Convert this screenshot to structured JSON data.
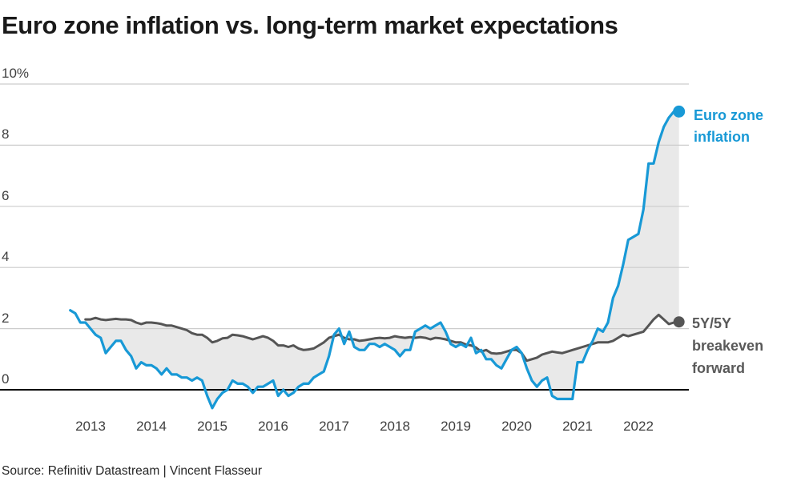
{
  "title": "Euro zone inflation vs. long-term market expectations",
  "source": "Source: Refinitiv Datastream | Vincent Flasseur",
  "colors": {
    "inflation_line": "#1899d6",
    "inflation_text": "#1899d6",
    "breakeven_line": "#555555",
    "breakeven_text": "#595959",
    "fill_between": "#e9e9e9",
    "grid": "#cccccc",
    "zero_line": "#000000",
    "title_text": "#1a1a1a",
    "axis_text": "#404040"
  },
  "chart_data": {
    "type": "line",
    "title": "Euro zone inflation vs. long-term market expectations",
    "xlabel": "",
    "ylabel": "",
    "y_unit": "%",
    "frequency": "monthly",
    "grid": "horizontal",
    "legend_position": "right-of-line-ends",
    "ylim": [
      -0.7,
      10
    ],
    "xlim_years": [
      2012.58,
      2022.75
    ],
    "y_ticks": [
      {
        "value": 10,
        "label": "10%"
      },
      {
        "value": 8,
        "label": "8"
      },
      {
        "value": 6,
        "label": "6"
      },
      {
        "value": 4,
        "label": "4"
      },
      {
        "value": 2,
        "label": "2"
      },
      {
        "value": 0,
        "label": "0"
      }
    ],
    "x_ticks": [
      {
        "year": 2013,
        "label": "2013"
      },
      {
        "year": 2014,
        "label": "2014"
      },
      {
        "year": 2015,
        "label": "2015"
      },
      {
        "year": 2016,
        "label": "2016"
      },
      {
        "year": 2017,
        "label": "2017"
      },
      {
        "year": 2018,
        "label": "2018"
      },
      {
        "year": 2019,
        "label": "2019"
      },
      {
        "year": 2020,
        "label": "2020"
      },
      {
        "year": 2021,
        "label": "2021"
      },
      {
        "year": 2022,
        "label": "2022"
      }
    ],
    "fill_between_series": true,
    "series": [
      {
        "name": "Euro zone inflation",
        "color_key": "inflation_line",
        "start_year": 2012,
        "start_month": 9,
        "values": [
          2.6,
          2.5,
          2.2,
          2.2,
          2.0,
          1.8,
          1.7,
          1.2,
          1.4,
          1.6,
          1.6,
          1.3,
          1.1,
          0.7,
          0.9,
          0.8,
          0.8,
          0.7,
          0.5,
          0.7,
          0.5,
          0.5,
          0.4,
          0.4,
          0.3,
          0.4,
          0.3,
          -0.2,
          -0.6,
          -0.3,
          -0.1,
          0.0,
          0.3,
          0.2,
          0.2,
          0.1,
          -0.1,
          0.1,
          0.1,
          0.2,
          0.3,
          -0.2,
          0.0,
          -0.2,
          -0.1,
          0.1,
          0.2,
          0.2,
          0.4,
          0.5,
          0.6,
          1.1,
          1.8,
          2.0,
          1.5,
          1.9,
          1.4,
          1.3,
          1.3,
          1.5,
          1.5,
          1.4,
          1.5,
          1.4,
          1.3,
          1.1,
          1.3,
          1.3,
          1.9,
          2.0,
          2.1,
          2.0,
          2.1,
          2.2,
          1.9,
          1.5,
          1.4,
          1.5,
          1.4,
          1.7,
          1.2,
          1.3,
          1.0,
          1.0,
          0.8,
          0.7,
          1.0,
          1.3,
          1.4,
          1.2,
          0.7,
          0.3,
          0.1,
          0.3,
          0.4,
          -0.2,
          -0.3,
          -0.3,
          -0.3,
          -0.3,
          0.9,
          0.9,
          1.3,
          1.6,
          2.0,
          1.9,
          2.2,
          3.0,
          3.4,
          4.1,
          4.9,
          5.0,
          5.1,
          5.9,
          7.4,
          7.4,
          8.1,
          8.6,
          8.9,
          9.1,
          9.1
        ]
      },
      {
        "name": "5Y/5Y breakeven forward",
        "color_key": "breakeven_line",
        "start_year": 2012,
        "start_month": 12,
        "values": [
          2.3,
          2.3,
          2.35,
          2.3,
          2.28,
          2.3,
          2.32,
          2.3,
          2.3,
          2.28,
          2.2,
          2.15,
          2.2,
          2.2,
          2.18,
          2.15,
          2.1,
          2.1,
          2.05,
          2.0,
          1.95,
          1.85,
          1.8,
          1.8,
          1.7,
          1.55,
          1.6,
          1.68,
          1.7,
          1.8,
          1.78,
          1.75,
          1.7,
          1.65,
          1.7,
          1.75,
          1.7,
          1.6,
          1.45,
          1.45,
          1.4,
          1.45,
          1.35,
          1.3,
          1.32,
          1.35,
          1.45,
          1.55,
          1.7,
          1.75,
          1.8,
          1.7,
          1.65,
          1.65,
          1.6,
          1.62,
          1.65,
          1.68,
          1.7,
          1.68,
          1.7,
          1.75,
          1.72,
          1.7,
          1.72,
          1.7,
          1.72,
          1.7,
          1.65,
          1.7,
          1.68,
          1.65,
          1.6,
          1.55,
          1.55,
          1.48,
          1.45,
          1.38,
          1.25,
          1.3,
          1.2,
          1.18,
          1.2,
          1.25,
          1.3,
          1.3,
          1.2,
          0.95,
          1.0,
          1.05,
          1.15,
          1.2,
          1.25,
          1.22,
          1.2,
          1.25,
          1.3,
          1.35,
          1.4,
          1.45,
          1.5,
          1.55,
          1.55,
          1.55,
          1.6,
          1.7,
          1.8,
          1.75,
          1.8,
          1.85,
          1.9,
          2.1,
          2.3,
          2.45,
          2.3,
          2.15,
          2.2,
          2.22
        ]
      }
    ]
  }
}
